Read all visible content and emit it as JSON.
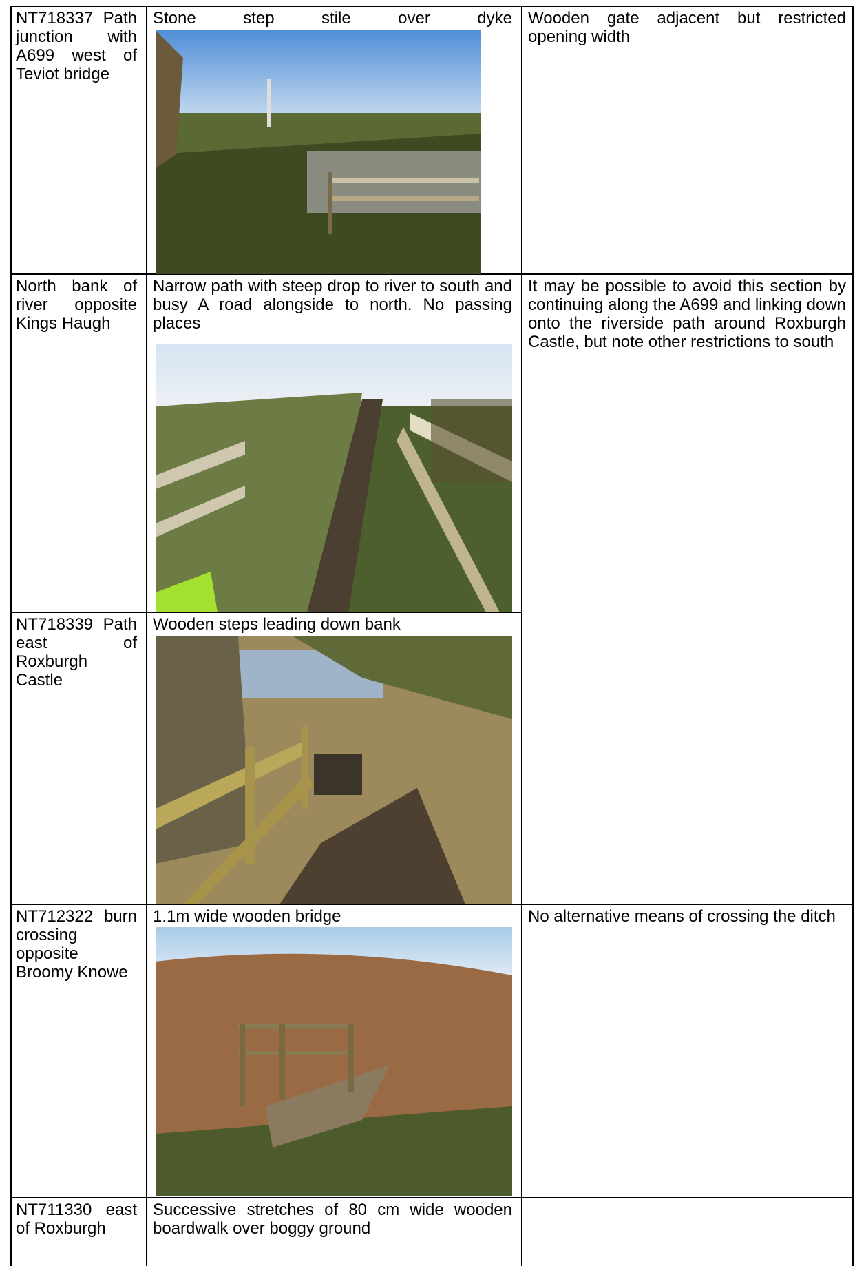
{
  "table": {
    "rows": [
      {
        "location": "NT718337 Path junction with A699 west of Teviot bridge",
        "description": "Stone step stile over dyke",
        "notes": "Wooden gate adjacent but restricted opening width"
      },
      {
        "location": "North bank of river opposite Kings Haugh",
        "description": "Narrow path with steep drop to river to south and busy A road alongside to north.  No passing places",
        "notes": "It may be possible to avoid this section by continuing along the A699 and linking down onto the riverside path around Roxburgh Castle, but note other restrictions to south"
      },
      {
        "location": "NT718339 Path east of Roxburgh Castle",
        "description": "Wooden steps leading down bank"
      },
      {
        "location": "NT712322 burn crossing opposite Broomy Knowe",
        "description": "1.1m wide wooden bridge",
        "notes": "No alternative means of crossing the ditch"
      },
      {
        "location": "NT711330 east of Roxburgh",
        "description": "Successive stretches of 80 cm wide wooden boardwalk over boggy ground"
      }
    ]
  }
}
